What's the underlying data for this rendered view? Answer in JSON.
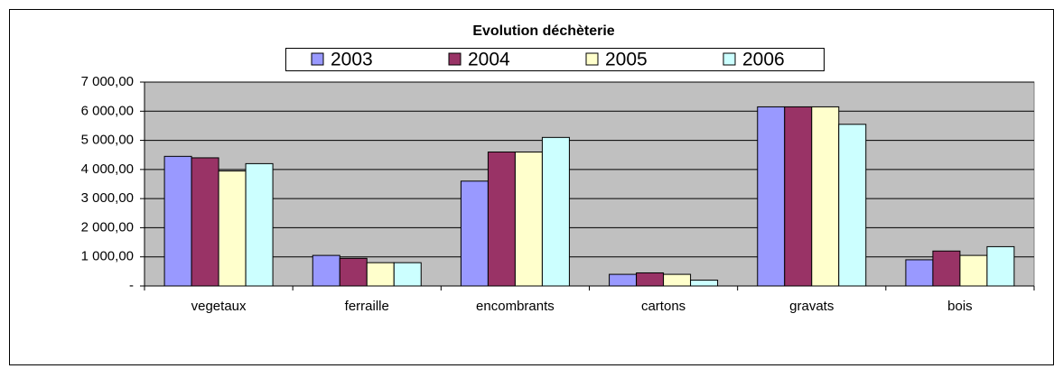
{
  "chart_data": {
    "type": "bar",
    "title": "Evolution déchèterie",
    "categories": [
      "vegetaux",
      "ferraille",
      "encombrants",
      "cartons",
      "gravats",
      "bois"
    ],
    "series": [
      {
        "name": "2003",
        "color": "#9999ff",
        "values": [
          4450,
          1050,
          3600,
          400,
          6150,
          900
        ]
      },
      {
        "name": "2004",
        "color": "#993366",
        "values": [
          4400,
          950,
          4600,
          450,
          6150,
          1200
        ]
      },
      {
        "name": "2005",
        "color": "#ffffcc",
        "values": [
          3950,
          800,
          4600,
          400,
          6150,
          1050
        ]
      },
      {
        "name": "2006",
        "color": "#ccffff",
        "values": [
          4200,
          800,
          5100,
          200,
          5550,
          1350
        ]
      }
    ],
    "ylim": [
      0,
      7000
    ],
    "yticks": [
      {
        "value": 0,
        "label": "-"
      },
      {
        "value": 1000,
        "label": "1 000,00"
      },
      {
        "value": 2000,
        "label": "2 000,00"
      },
      {
        "value": 3000,
        "label": "3 000,00"
      },
      {
        "value": 4000,
        "label": "4 000,00"
      },
      {
        "value": 5000,
        "label": "5 000,00"
      },
      {
        "value": 6000,
        "label": "6 000,00"
      },
      {
        "value": 7000,
        "label": "7 000,00"
      }
    ],
    "grid": true,
    "legend": "top"
  }
}
